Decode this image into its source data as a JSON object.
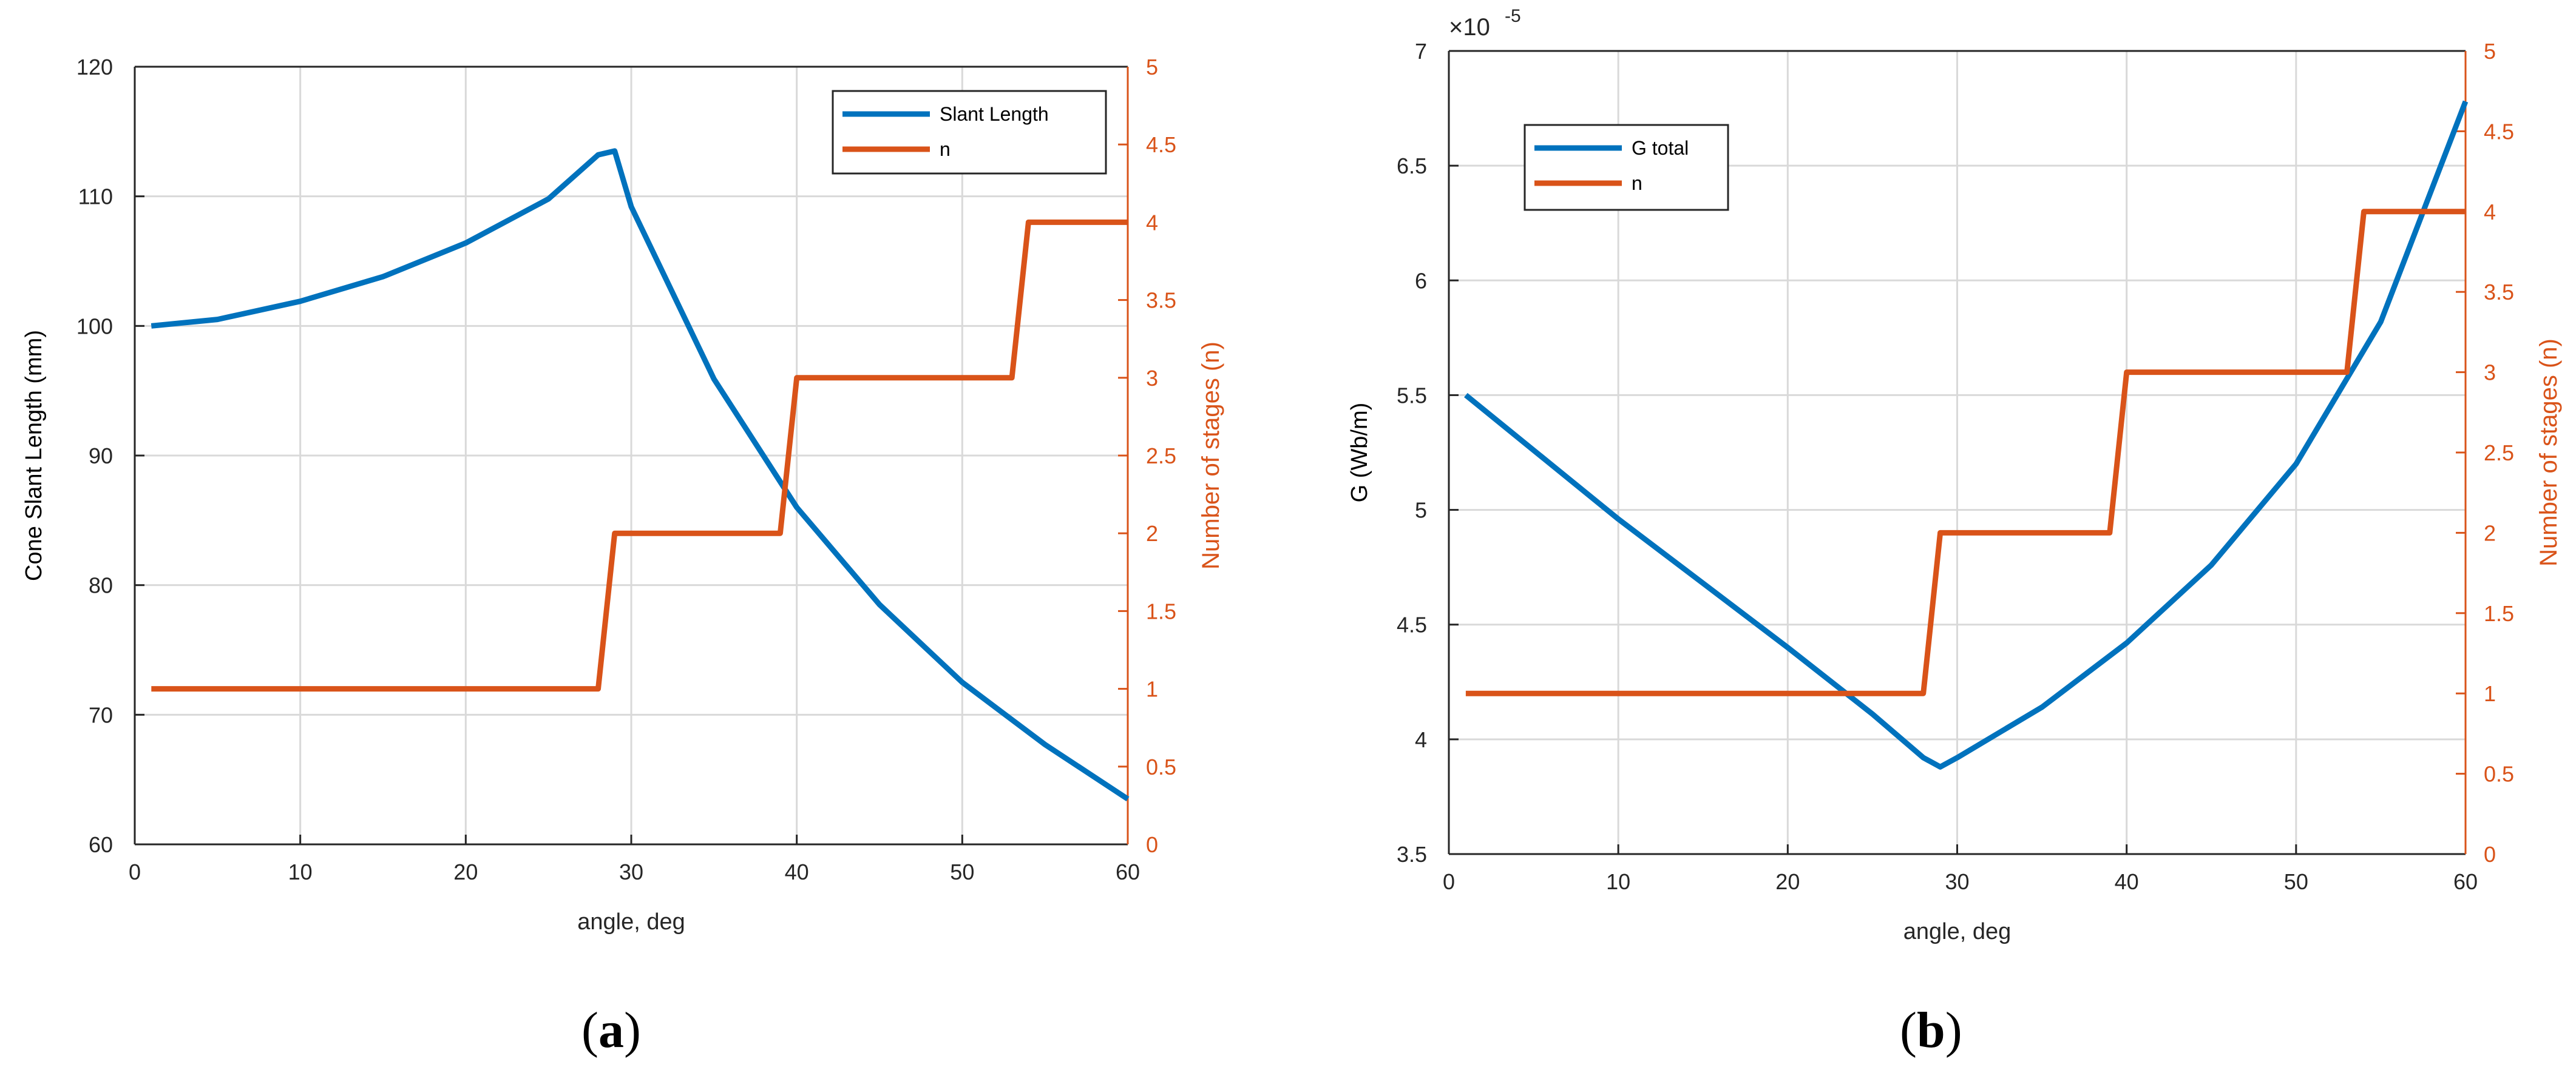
{
  "colors": {
    "blue": "#0072BD",
    "orange": "#D95319",
    "grid": "#d9d9d9",
    "axis": "#262626"
  },
  "chart_data": [
    {
      "type": "line",
      "panel_label": "a",
      "xlabel": "angle, deg",
      "ylabel_left": "Cone Slant Length (mm)",
      "ylabel_right": "Number of stages (n)",
      "xlim": [
        0,
        60
      ],
      "ylim_left": [
        60,
        120
      ],
      "ylim_right": [
        0,
        5
      ],
      "x_ticks": [
        "0",
        "10",
        "20",
        "30",
        "40",
        "50",
        "60"
      ],
      "y_left_ticks": [
        "60",
        "70",
        "80",
        "90",
        "100",
        "110",
        "120"
      ],
      "y_right_ticks": [
        "0",
        "0.5",
        "1",
        "1.5",
        "2",
        "2.5",
        "3",
        "3.5",
        "4",
        "4.5",
        "5"
      ],
      "grid": true,
      "legend_position": "top-right",
      "series": [
        {
          "name": "Slant Length",
          "axis": "left",
          "color": "#0072BD",
          "x": [
            1,
            5,
            10,
            15,
            20,
            25,
            28,
            29,
            30,
            35,
            40,
            45,
            50,
            55,
            60
          ],
          "y": [
            100,
            100.5,
            101.9,
            103.8,
            106.4,
            109.8,
            113.2,
            113.5,
            109.2,
            95.9,
            86.0,
            78.5,
            72.5,
            67.7,
            63.5
          ]
        },
        {
          "name": "n",
          "axis": "right",
          "color": "#D95319",
          "x": [
            1,
            28,
            29,
            39,
            40,
            53,
            54,
            60
          ],
          "y": [
            1,
            1,
            2,
            2,
            3,
            3,
            4,
            4
          ]
        }
      ]
    },
    {
      "type": "line",
      "panel_label": "b",
      "xlabel": "angle, deg",
      "ylabel_left": "G (Wb/m)",
      "ylabel_right": "Number of stages (n)",
      "multiplier_base": "×10",
      "multiplier_exponent": "-5",
      "xlim": [
        0,
        60
      ],
      "ylim_left": [
        3.5,
        7
      ],
      "ylim_right": [
        0,
        5
      ],
      "x_ticks": [
        "0",
        "10",
        "20",
        "30",
        "40",
        "50",
        "60"
      ],
      "y_left_ticks": [
        "3.5",
        "4",
        "4.5",
        "5",
        "5.5",
        "6",
        "6.5",
        "7"
      ],
      "y_right_ticks": [
        "0",
        "0.5",
        "1",
        "1.5",
        "2",
        "2.5",
        "3",
        "3.5",
        "4",
        "4.5",
        "5"
      ],
      "grid": true,
      "legend_position": "top-left",
      "series": [
        {
          "name": "G total",
          "axis": "left",
          "color": "#0072BD",
          "x": [
            1,
            5,
            10,
            15,
            20,
            25,
            28,
            29,
            30,
            35,
            40,
            45,
            50,
            55,
            60
          ],
          "y": [
            5.5,
            5.26,
            4.96,
            4.68,
            4.4,
            4.11,
            3.92,
            3.88,
            3.92,
            4.14,
            4.42,
            4.76,
            5.2,
            5.82,
            6.78
          ]
        },
        {
          "name": "n",
          "axis": "right",
          "color": "#D95319",
          "x": [
            1,
            28,
            29,
            39,
            40,
            53,
            54,
            60
          ],
          "y": [
            1,
            1,
            2,
            2,
            3,
            3,
            4,
            4
          ]
        }
      ]
    }
  ]
}
